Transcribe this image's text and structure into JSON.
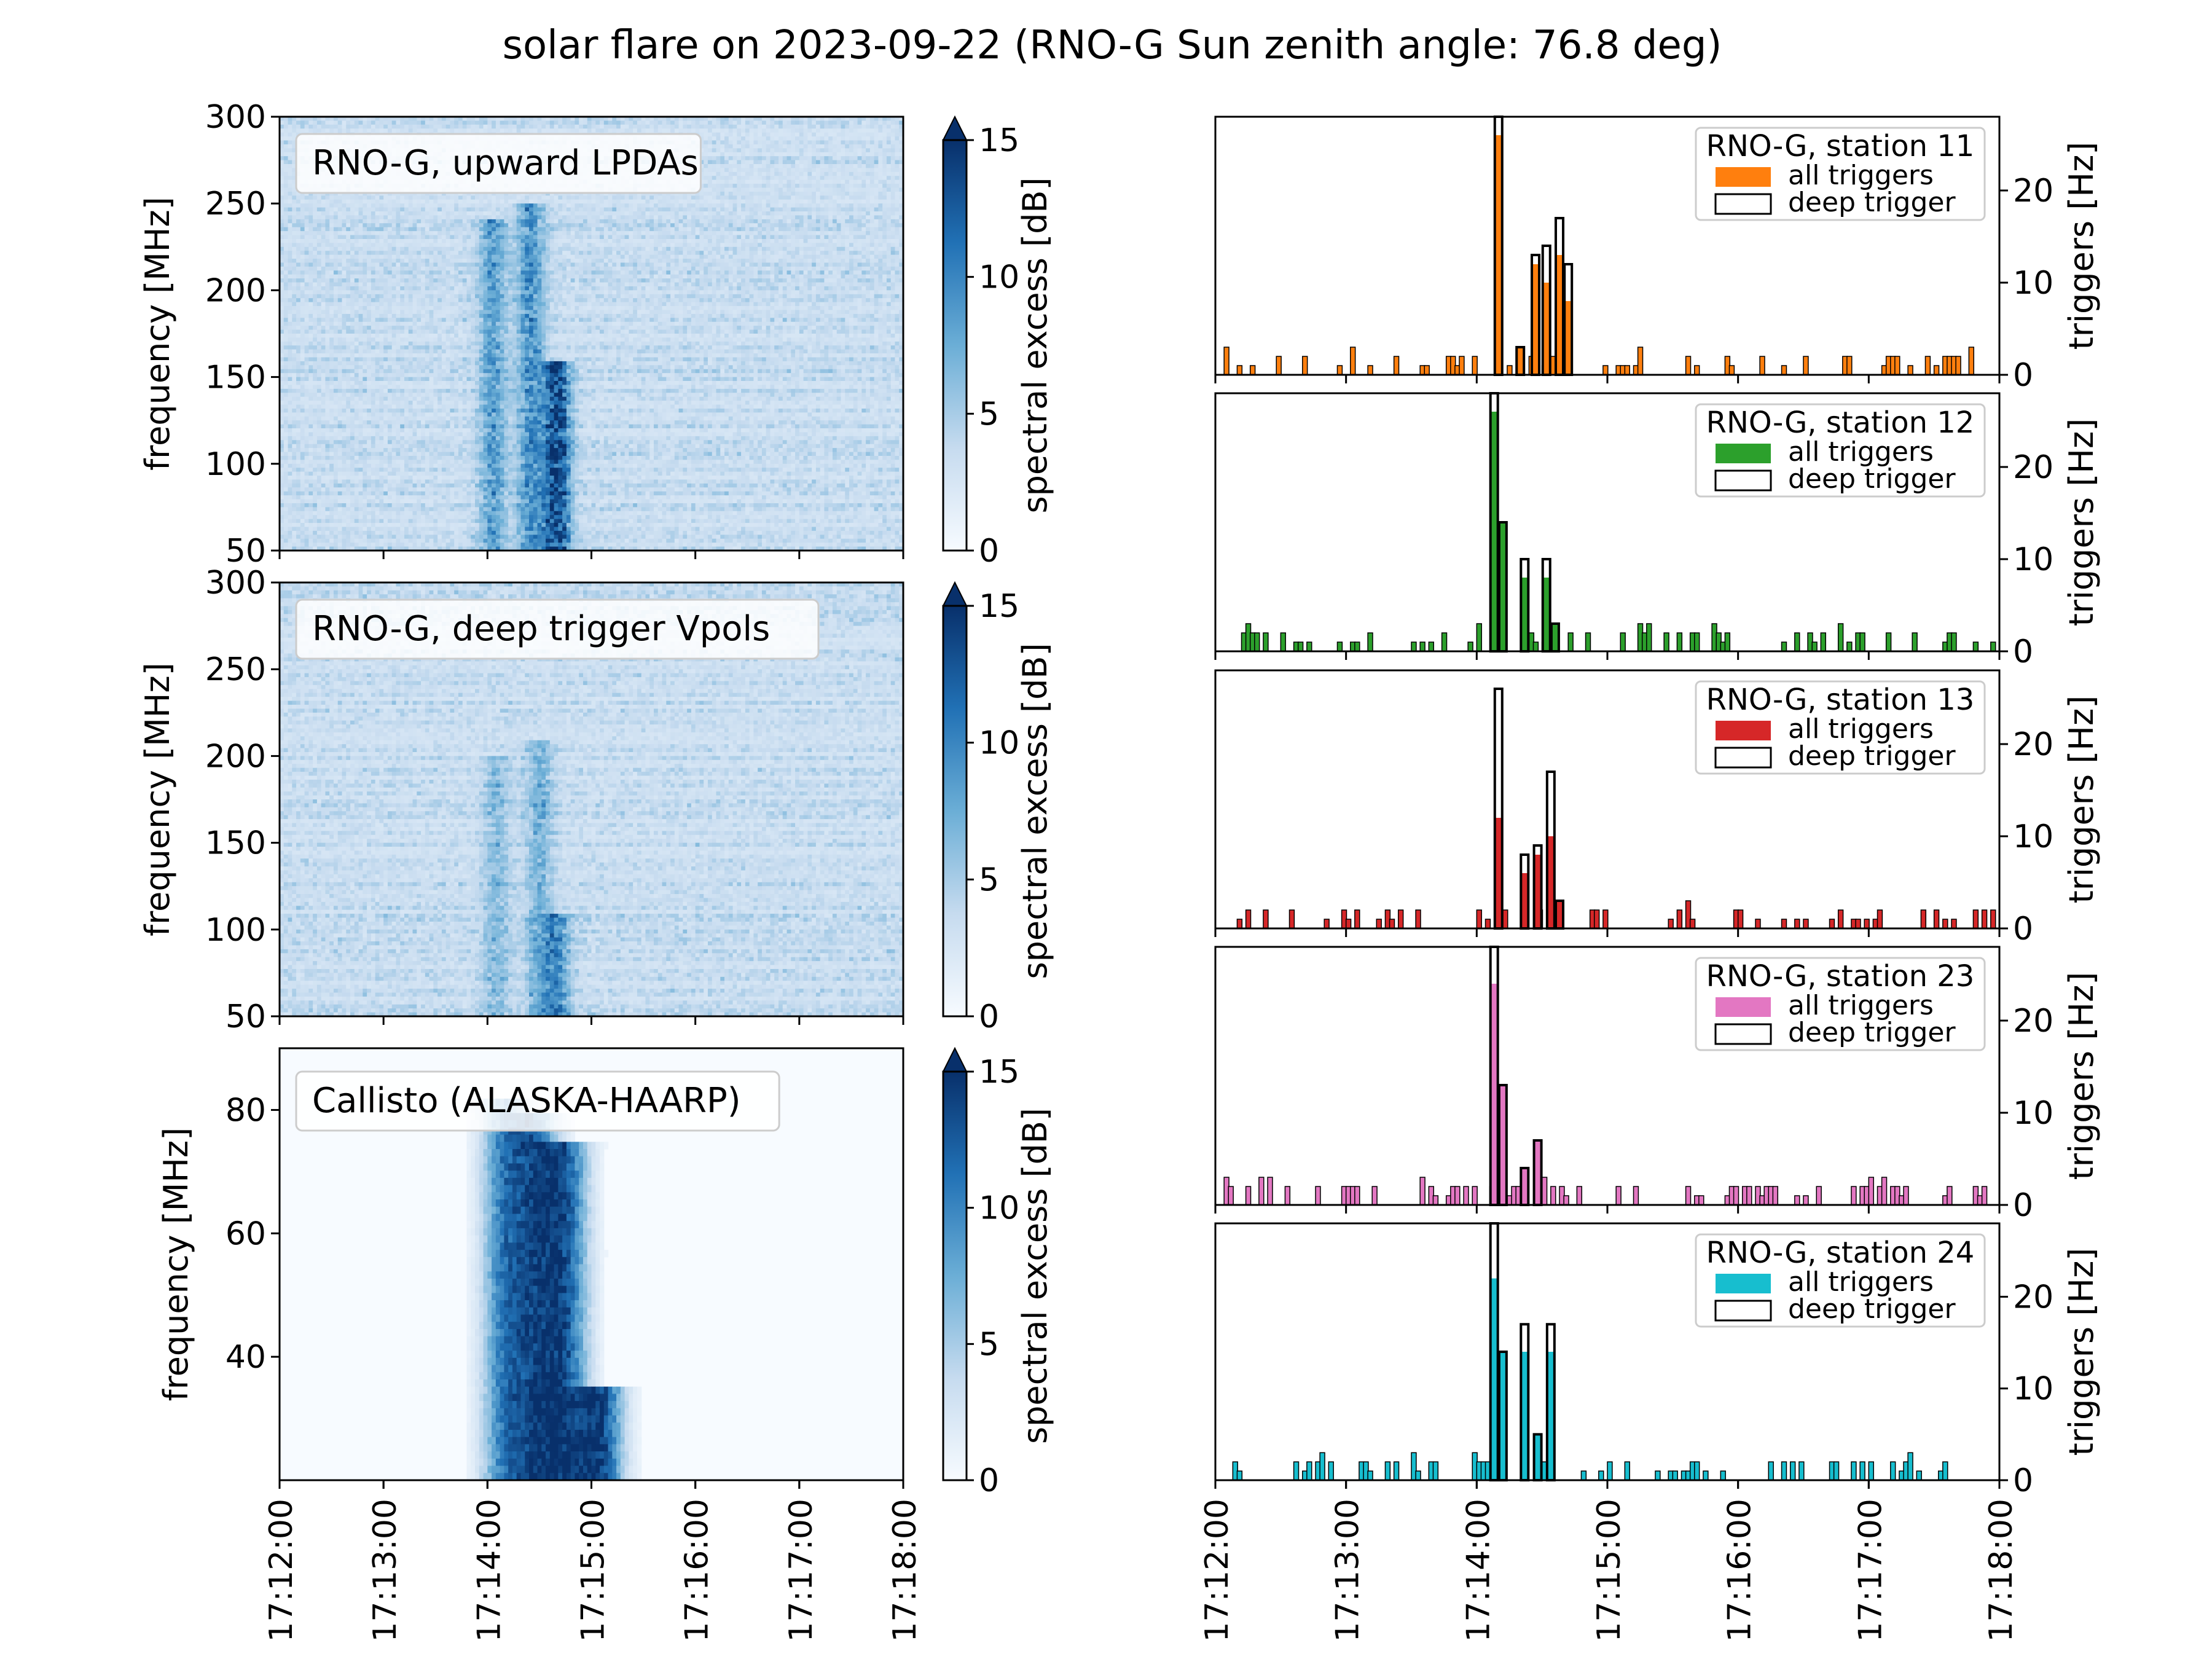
{
  "figure": {
    "title": "solar flare on 2023-09-22 (RNO-G Sun zenith angle: 76.8 deg)",
    "time_ticks": [
      "17:12:00",
      "17:13:00",
      "17:14:00",
      "17:15:00",
      "17:16:00",
      "17:17:00",
      "17:18:00"
    ]
  },
  "colors": {
    "station_11": "#ff7f0e",
    "station_12": "#2ca02c",
    "station_13": "#d62728",
    "station_23": "#e377c2",
    "station_24": "#17becf",
    "deep_trigger": "#000000",
    "colormap_low": "#f7fbff",
    "colormap_high": "#08306b"
  },
  "chart_data": [
    {
      "type": "heatmap",
      "label": "RNO-G, upward LPDAs",
      "ylabel": "frequency [MHz]",
      "ylim": [
        50,
        300
      ],
      "yticks": [
        "50",
        "100",
        "150",
        "200",
        "250",
        "300"
      ],
      "xlim": [
        "17:12:00",
        "17:18:00"
      ],
      "colorbar": {
        "label": "spectral excess [dB]",
        "range": [
          0,
          15
        ],
        "ticks": [
          "0",
          "5",
          "10",
          "15"
        ],
        "extend": "max"
      },
      "bursts": [
        {
          "t": "17:14:03",
          "fmin": 50,
          "fmax": 240,
          "intensity": 7
        },
        {
          "t": "17:14:25",
          "fmin": 50,
          "fmax": 250,
          "intensity": 8
        },
        {
          "t": "17:14:40",
          "fmin": 50,
          "fmax": 160,
          "intensity": 15
        }
      ]
    },
    {
      "type": "heatmap",
      "label": "RNO-G, deep trigger Vpols",
      "ylabel": "frequency [MHz]",
      "ylim": [
        50,
        300
      ],
      "yticks": [
        "50",
        "100",
        "150",
        "200",
        "250",
        "300"
      ],
      "xlim": [
        "17:12:00",
        "17:18:00"
      ],
      "colorbar": {
        "label": "spectral excess [dB]",
        "range": [
          0,
          15
        ],
        "ticks": [
          "0",
          "5",
          "10",
          "15"
        ],
        "extend": "max"
      },
      "bursts": [
        {
          "t": "17:14:05",
          "fmin": 50,
          "fmax": 200,
          "intensity": 4
        },
        {
          "t": "17:14:30",
          "fmin": 50,
          "fmax": 210,
          "intensity": 5
        },
        {
          "t": "17:14:40",
          "fmin": 50,
          "fmax": 110,
          "intensity": 8
        }
      ]
    },
    {
      "type": "heatmap",
      "label": "Callisto (ALASKA-HAARP)",
      "ylabel": "frequency [MHz]",
      "ylim": [
        20,
        90
      ],
      "yticks": [
        "40",
        "60",
        "80"
      ],
      "xlim": [
        "17:12:00",
        "17:18:00"
      ],
      "colorbar": {
        "label": "spectral excess [dB]",
        "range": [
          0,
          15
        ],
        "ticks": [
          "0",
          "5",
          "10",
          "15"
        ],
        "extend": "max"
      },
      "bursts": [
        {
          "t": "17:14:10",
          "fmin": 20,
          "fmax": 82,
          "intensity": 11
        },
        {
          "t": "17:14:28",
          "fmin": 20,
          "fmax": 80,
          "intensity": 12
        },
        {
          "t": "17:14:45",
          "fmin": 20,
          "fmax": 75,
          "intensity": 13
        },
        {
          "t": "17:15:05",
          "fmin": 20,
          "fmax": 35,
          "intensity": 15
        }
      ]
    },
    {
      "type": "bar",
      "legend_title": "RNO-G, station 11",
      "legend_all": "all triggers",
      "legend_deep": "deep trigger",
      "ylabel": "triggers [Hz]",
      "ylim": [
        0,
        28
      ],
      "yticks": [
        "0",
        "10",
        "20"
      ],
      "xlim": [
        "17:12:00",
        "17:18:00"
      ],
      "series": [
        {
          "name": "all triggers",
          "style": "filled",
          "t": [
            "17:14:10",
            "17:14:20",
            "17:14:27",
            "17:14:32",
            "17:14:38",
            "17:14:42"
          ],
          "values": [
            26,
            3,
            12,
            10,
            13,
            8
          ]
        },
        {
          "name": "deep trigger",
          "style": "step",
          "t": [
            "17:14:10",
            "17:14:20",
            "17:14:27",
            "17:14:32",
            "17:14:38",
            "17:14:42"
          ],
          "values": [
            28,
            3,
            13,
            14,
            17,
            12
          ]
        }
      ]
    },
    {
      "type": "bar",
      "legend_title": "RNO-G, station 12",
      "legend_all": "all triggers",
      "legend_deep": "deep trigger",
      "ylabel": "triggers [Hz]",
      "ylim": [
        0,
        28
      ],
      "yticks": [
        "0",
        "10",
        "20"
      ],
      "xlim": [
        "17:12:00",
        "17:18:00"
      ],
      "series": [
        {
          "name": "all triggers",
          "style": "filled",
          "t": [
            "17:14:08",
            "17:14:12",
            "17:14:22",
            "17:14:32",
            "17:14:36"
          ],
          "values": [
            26,
            14,
            8,
            8,
            3
          ]
        },
        {
          "name": "deep trigger",
          "style": "step",
          "t": [
            "17:14:08",
            "17:14:12",
            "17:14:22",
            "17:14:32",
            "17:14:36"
          ],
          "values": [
            28,
            14,
            10,
            10,
            3
          ]
        }
      ]
    },
    {
      "type": "bar",
      "legend_title": "RNO-G, station 13",
      "legend_all": "all triggers",
      "legend_deep": "deep trigger",
      "ylabel": "triggers [Hz]",
      "ylim": [
        0,
        28
      ],
      "yticks": [
        "0",
        "10",
        "20"
      ],
      "xlim": [
        "17:12:00",
        "17:18:00"
      ],
      "series": [
        {
          "name": "all triggers",
          "style": "filled",
          "t": [
            "17:14:10",
            "17:14:22",
            "17:14:28",
            "17:14:34",
            "17:14:38"
          ],
          "values": [
            12,
            6,
            8,
            10,
            3
          ]
        },
        {
          "name": "deep trigger",
          "style": "step",
          "t": [
            "17:14:10",
            "17:14:22",
            "17:14:28",
            "17:14:34",
            "17:14:38"
          ],
          "values": [
            26,
            8,
            9,
            17,
            3
          ]
        }
      ]
    },
    {
      "type": "bar",
      "legend_title": "RNO-G, station 23",
      "legend_all": "all triggers",
      "legend_deep": "deep trigger",
      "ylabel": "triggers [Hz]",
      "ylim": [
        0,
        28
      ],
      "yticks": [
        "0",
        "10",
        "20"
      ],
      "xlim": [
        "17:12:00",
        "17:18:00"
      ],
      "series": [
        {
          "name": "all triggers",
          "style": "filled",
          "t": [
            "17:14:08",
            "17:14:12",
            "17:14:22",
            "17:14:28"
          ],
          "values": [
            24,
            13,
            4,
            7
          ]
        },
        {
          "name": "deep trigger",
          "style": "step",
          "t": [
            "17:14:08",
            "17:14:12",
            "17:14:22",
            "17:14:28"
          ],
          "values": [
            28,
            13,
            4,
            7
          ]
        }
      ]
    },
    {
      "type": "bar",
      "legend_title": "RNO-G, station 24",
      "legend_all": "all triggers",
      "legend_deep": "deep trigger",
      "ylabel": "triggers [Hz]",
      "ylim": [
        0,
        28
      ],
      "yticks": [
        "0",
        "10",
        "20"
      ],
      "xlim": [
        "17:12:00",
        "17:18:00"
      ],
      "series": [
        {
          "name": "all triggers",
          "style": "filled",
          "t": [
            "17:14:08",
            "17:14:12",
            "17:14:22",
            "17:14:28",
            "17:14:34"
          ],
          "values": [
            22,
            14,
            14,
            5,
            14
          ]
        },
        {
          "name": "deep trigger",
          "style": "step",
          "t": [
            "17:14:08",
            "17:14:12",
            "17:14:22",
            "17:14:28",
            "17:14:34"
          ],
          "values": [
            28,
            14,
            17,
            5,
            17
          ]
        }
      ]
    }
  ]
}
